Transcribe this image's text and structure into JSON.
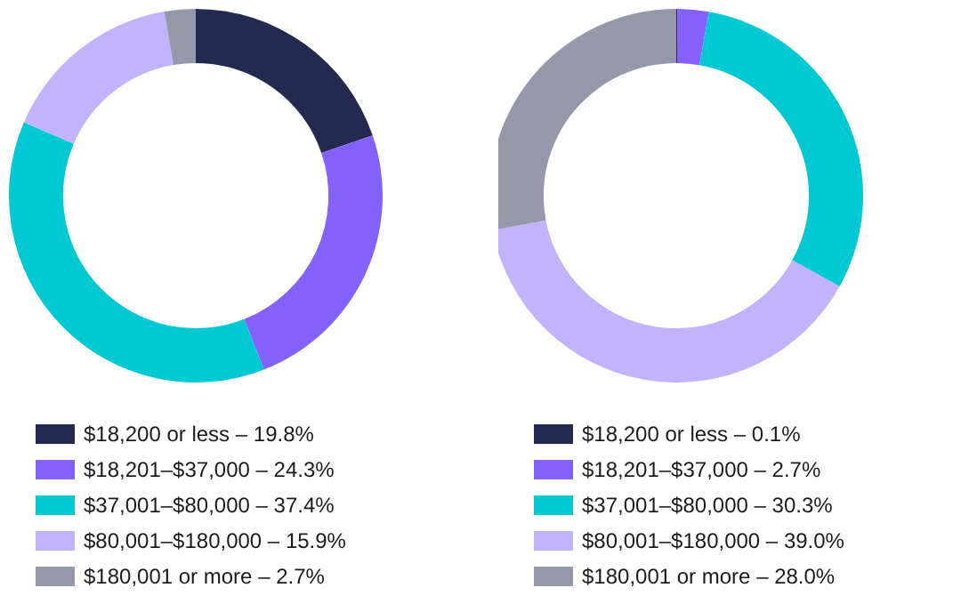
{
  "chart_data": [
    {
      "type": "donut",
      "categories": [
        "$18,200 or less – 19.8%",
        "$18,201–$37,000 – 24.3%",
        "$37,001–$80,000 – 37.4%",
        "$80,001–$180,000 – 15.9%",
        "$180,001 or more – 2.7%"
      ],
      "values": [
        19.8,
        24.3,
        37.4,
        15.9,
        2.7
      ],
      "colors": [
        "#222a4f",
        "#8460fc",
        "#00c9d4",
        "#c3b2fe",
        "#9598aa"
      ],
      "legend": "bottom"
    },
    {
      "type": "donut",
      "categories": [
        "$18,200 or less – 0.1%",
        "$18,201–$37,000 – 2.7%",
        "$37,001–$80,000 – 30.3%",
        "$80,001–$180,000 – 39.0%",
        "$180,001 or more – 28.0%"
      ],
      "values": [
        0.1,
        2.7,
        30.3,
        39.0,
        28.0
      ],
      "colors": [
        "#222a4f",
        "#8460fc",
        "#00c9d4",
        "#c3b2fe",
        "#9598aa"
      ],
      "legend": "bottom"
    }
  ]
}
